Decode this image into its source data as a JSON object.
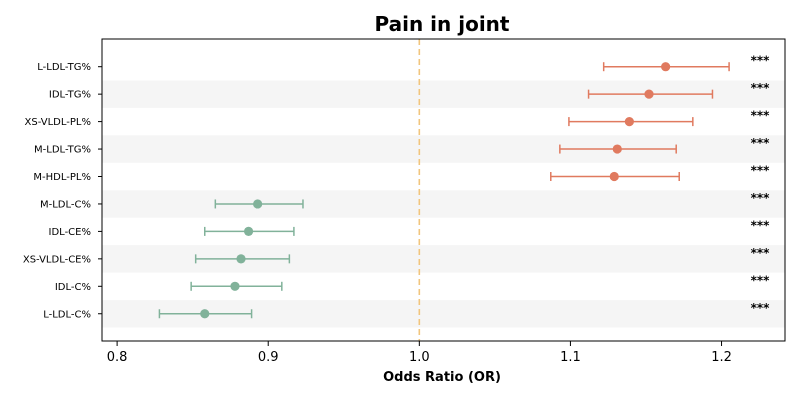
{
  "chart_data": {
    "type": "forest",
    "title": "Pain in joint",
    "xlabel": "Odds Ratio (OR)",
    "xlim": [
      0.79,
      1.242
    ],
    "xticks": [
      0.8,
      0.9,
      1.0,
      1.1,
      1.2
    ],
    "xtick_labels": [
      "0.8",
      "0.9",
      "1.0",
      "1.1",
      "1.2"
    ],
    "reference_line": 1.0,
    "colors": {
      "positive": "#e07a5f",
      "negative": "#81b29a",
      "reference": "#f2c57c",
      "band": "#f5f5f5"
    },
    "rows": [
      {
        "label": "L-LDL-TG%",
        "or": 1.163,
        "lo": 1.122,
        "hi": 1.205,
        "sig": "***"
      },
      {
        "label": "IDL-TG%",
        "or": 1.152,
        "lo": 1.112,
        "hi": 1.194,
        "sig": "***"
      },
      {
        "label": "XS-VLDL-PL%",
        "or": 1.139,
        "lo": 1.099,
        "hi": 1.181,
        "sig": "***"
      },
      {
        "label": "M-LDL-TG%",
        "or": 1.131,
        "lo": 1.093,
        "hi": 1.17,
        "sig": "***"
      },
      {
        "label": "M-HDL-PL%",
        "or": 1.129,
        "lo": 1.087,
        "hi": 1.172,
        "sig": "***"
      },
      {
        "label": "M-LDL-C%",
        "or": 0.893,
        "lo": 0.865,
        "hi": 0.923,
        "sig": "***"
      },
      {
        "label": "IDL-CE%",
        "or": 0.887,
        "lo": 0.858,
        "hi": 0.917,
        "sig": "***"
      },
      {
        "label": "XS-VLDL-CE%",
        "or": 0.882,
        "lo": 0.852,
        "hi": 0.914,
        "sig": "***"
      },
      {
        "label": "IDL-C%",
        "or": 0.878,
        "lo": 0.849,
        "hi": 0.909,
        "sig": "***"
      },
      {
        "label": "L-LDL-C%",
        "or": 0.858,
        "lo": 0.828,
        "hi": 0.889,
        "sig": "***"
      }
    ]
  }
}
